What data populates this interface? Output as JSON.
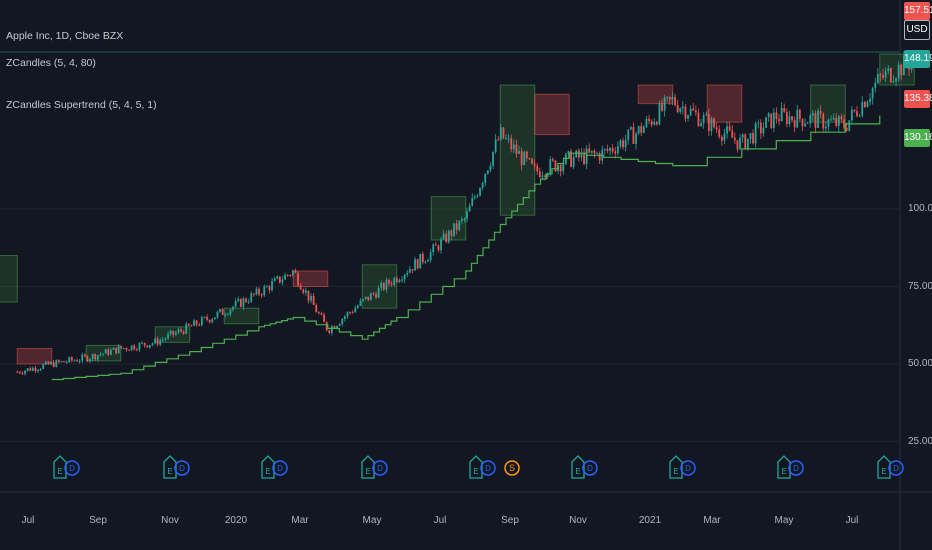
{
  "legend": {
    "symbol": "Apple Inc, 1D, Cboe BZX",
    "indicator1": "ZCandles (5, 4, 80)",
    "indicator2": "ZCandles Supertrend (5, 4, 5, 1)"
  },
  "badges": {
    "currency": "USD",
    "top": "157.51",
    "price": "148.19",
    "red": "135.38",
    "green": "130.16"
  },
  "colors": {
    "background": "#131722",
    "grid": "#1f2430",
    "up": "#26a69a",
    "down": "#ef5350",
    "supertrend": "#4caf50",
    "zone_green": "#4caf50",
    "zone_red": "#ef5350",
    "earnings": "#26a69a",
    "dividend": "#2962ff",
    "split": "#ff9800"
  },
  "chart_data": {
    "type": "candlestick",
    "y_axis": {
      "ticks": [
        25,
        50,
        75,
        100
      ],
      "unit": "USD"
    },
    "x_axis": {
      "labels": [
        "Jul",
        "Sep",
        "Nov",
        "2020",
        "Mar",
        "May",
        "Jul",
        "Sep",
        "Nov",
        "2021",
        "Mar",
        "May",
        "Jul"
      ]
    },
    "price_path": [
      [
        "Jun",
        47.5
      ],
      [
        "Jul",
        50
      ],
      [
        "Aug",
        52
      ],
      [
        "Sep",
        55
      ],
      [
        "Oct",
        57
      ],
      [
        "Nov",
        62
      ],
      [
        "Dec",
        67
      ],
      [
        "2020",
        73
      ],
      [
        "Feb",
        80
      ],
      [
        "Mar",
        61
      ],
      [
        "Apr",
        70
      ],
      [
        "May",
        78
      ],
      [
        "Jun",
        86
      ],
      [
        "Jul",
        97
      ],
      [
        "Aug",
        124
      ],
      [
        "Sep",
        112
      ],
      [
        "Oct",
        116
      ],
      [
        "Nov",
        118
      ],
      [
        "Dec",
        125
      ],
      [
        "2021",
        135
      ],
      [
        "Feb",
        128
      ],
      [
        "Mar",
        121
      ],
      [
        "Apr",
        130
      ],
      [
        "May",
        129
      ],
      [
        "Jun",
        127
      ],
      [
        "Jul",
        142
      ],
      [
        "Aug",
        148.19
      ]
    ],
    "zones": [
      {
        "color": "red",
        "from": "Jun",
        "to": "Jul",
        "low": 50,
        "high": 55
      },
      {
        "color": "green",
        "from": "Aug",
        "to": "Sep",
        "low": 51,
        "high": 56
      },
      {
        "color": "green",
        "from": "Oct",
        "to": "Nov",
        "low": 57,
        "high": 62
      },
      {
        "color": "green",
        "from": "Dec",
        "to": "Jan",
        "low": 63,
        "high": 68
      },
      {
        "color": "green",
        "from": "Jan",
        "to": "Feb",
        "low": 70,
        "high": 85
      },
      {
        "color": "red",
        "from": "Feb",
        "to": "Mar",
        "low": 75,
        "high": 80
      },
      {
        "color": "green",
        "from": "Apr",
        "to": "May",
        "low": 68,
        "high": 82
      },
      {
        "color": "green",
        "from": "Jun",
        "to": "Jul",
        "low": 90,
        "high": 104
      },
      {
        "color": "green",
        "from": "Aug",
        "to": "Sep",
        "low": 98,
        "high": 140
      },
      {
        "color": "red",
        "from": "Sep",
        "to": "Oct",
        "low": 124,
        "high": 137
      },
      {
        "color": "red",
        "from": "Dec",
        "to": "2021",
        "low": 134,
        "high": 140
      },
      {
        "color": "red",
        "from": "Feb",
        "to": "Mar",
        "low": 128,
        "high": 140
      },
      {
        "color": "green",
        "from": "May",
        "to": "Jun",
        "low": 128,
        "high": 140
      },
      {
        "color": "green",
        "from": "Jul",
        "to": "Aug",
        "low": 140,
        "high": 150
      }
    ],
    "supertrend_path": [
      [
        "Jul",
        45
      ],
      [
        "Sep",
        47
      ],
      [
        "Nov",
        54
      ],
      [
        "2020",
        62
      ],
      [
        "Feb",
        65
      ],
      [
        "Apr",
        58
      ],
      [
        "May",
        65
      ],
      [
        "Jul",
        80
      ],
      [
        "Aug",
        95
      ],
      [
        "Sep",
        108
      ],
      [
        "Oct",
        118
      ],
      [
        "2021",
        114
      ],
      [
        "Jul",
        130.16
      ]
    ],
    "events": [
      "E D",
      "E D",
      "E D",
      "E D",
      "E D",
      "S",
      "E D",
      "E D",
      "E D",
      "E D"
    ]
  }
}
